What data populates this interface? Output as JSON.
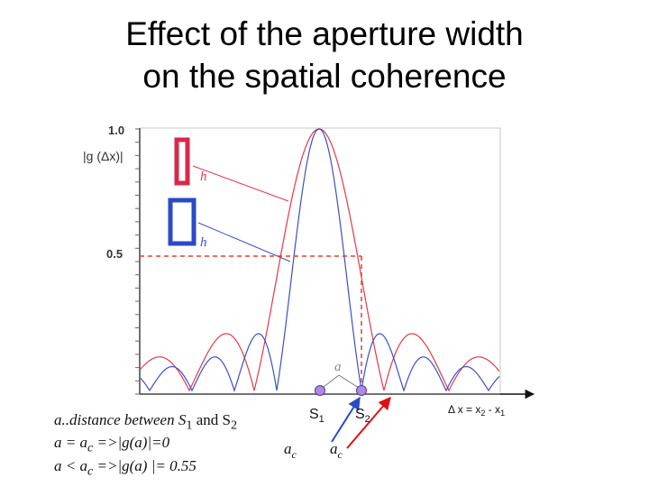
{
  "slide": {
    "title_line1": "Effect of the aperture width",
    "title_line2": "on the spatial coherence"
  },
  "chart_data": {
    "type": "line",
    "ylabel": "|g (Δx)|",
    "y_ticks": [
      "1.0",
      "0.5"
    ],
    "xlabel": "Δ x = x2 - x1",
    "xlabel_main": "Δ x = x",
    "xlabel_sub1": "2",
    "xlabel_mid": " - x",
    "xlabel_sub2": "1",
    "series": [
      {
        "name": "h",
        "color": "#e23a4a",
        "desc": "narrow aperture, wide central lobe"
      },
      {
        "name": "h",
        "color": "#3a50c8",
        "desc": "wide aperture, narrow central lobe"
      }
    ],
    "colors": {
      "red": "#e23a4a",
      "blue": "#3a50c8",
      "dash": "#e0402a"
    },
    "annotations": {
      "a": "a",
      "s1": "S",
      "s1_sub": "1",
      "s2": "S",
      "s2_sub": "2",
      "ac": "a",
      "ac_sub": "c"
    }
  },
  "notes": {
    "line1_a": "a..distance between S",
    "line1_sub1": "1",
    "line1_b": " and S",
    "line1_sub2": "2",
    "line2_a": "a = a",
    "line2_sub": "c",
    "line2_b": " =>|g(a)|=0",
    "line3_a": "a < a",
    "line3_sub": "c",
    "line3_b": " =>|g(a) |= 0.55"
  }
}
